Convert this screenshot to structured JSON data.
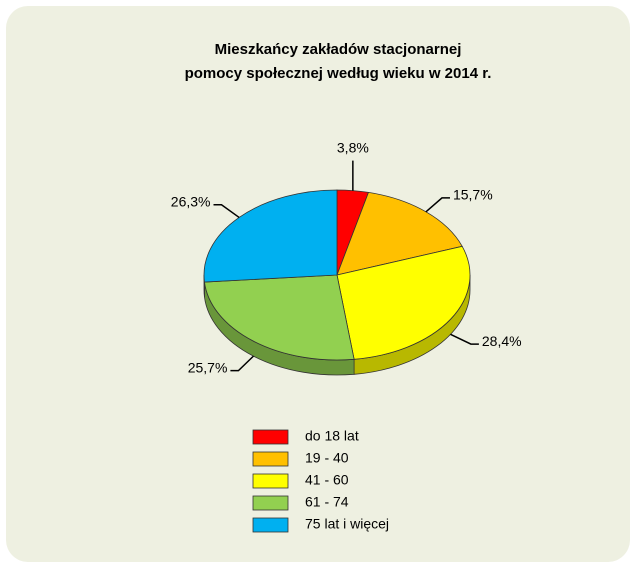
{
  "chart_data": {
    "type": "pie3d",
    "title": [
      "Mieszkańcy zakładów stacjonarnej",
      "pomocy społecznej według wieku w 2014 r."
    ],
    "categories": [
      "do 18 lat",
      "19 - 40",
      "41 - 60",
      "61 - 74",
      "75 lat i więcej"
    ],
    "values": [
      3.8,
      15.7,
      28.4,
      25.7,
      26.3
    ],
    "value_labels": [
      "3,8%",
      "15,7%",
      "28,4%",
      "25,7%",
      "26,3%"
    ],
    "colors": [
      "#ff0000",
      "#ffc000",
      "#ffff00",
      "#92d050",
      "#00b0f0"
    ],
    "legend": "bottom"
  }
}
